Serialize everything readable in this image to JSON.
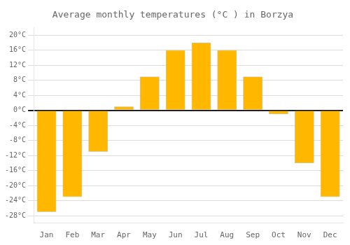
{
  "chart_data": {
    "type": "bar",
    "title": "Average monthly temperatures (°C ) in Borzya",
    "categories": [
      "Jan",
      "Feb",
      "Mar",
      "Apr",
      "May",
      "Jun",
      "Jul",
      "Aug",
      "Sep",
      "Oct",
      "Nov",
      "Dec"
    ],
    "values": [
      -27,
      -23,
      -11,
      1,
      9,
      16,
      18,
      16,
      9,
      -1,
      -14,
      -23
    ],
    "color": "#FFB700",
    "ylim": [
      -30,
      22
    ],
    "yticks": [
      {
        "value": -28,
        "label": "-28°C"
      },
      {
        "value": -24,
        "label": "-24°C"
      },
      {
        "value": -20,
        "label": "-20°C"
      },
      {
        "value": -16,
        "label": "-16°C"
      },
      {
        "value": -12,
        "label": "-12°C"
      },
      {
        "value": -8,
        "label": "-8°C"
      },
      {
        "value": -4,
        "label": "-4°C"
      },
      {
        "value": 0,
        "label": "0°C"
      },
      {
        "value": 4,
        "label": "4°C"
      },
      {
        "value": 8,
        "label": "8°C"
      },
      {
        "value": 12,
        "label": "12°C"
      },
      {
        "value": 16,
        "label": "16°C"
      },
      {
        "value": 20,
        "label": "20°C"
      }
    ],
    "grid": true
  }
}
